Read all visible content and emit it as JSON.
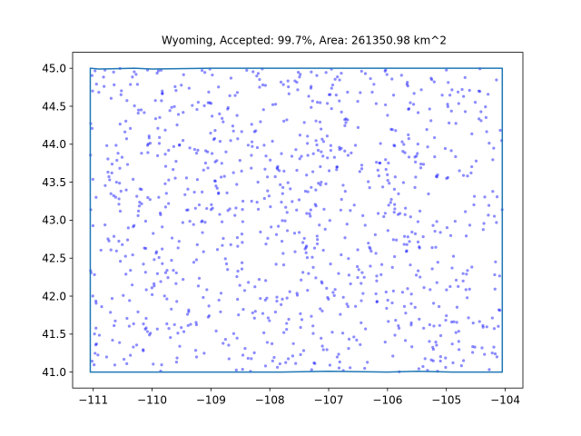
{
  "chart_data": {
    "type": "scatter",
    "title": "Wyoming, Accepted: 99.7%, Area: 261350.98 km^2",
    "xlabel": "",
    "ylabel": "",
    "xlim": [
      -111.35,
      -103.7
    ],
    "ylim": [
      40.79,
      45.21
    ],
    "grid": false,
    "legend": "none",
    "x_ticks": [
      -111,
      -110,
      -109,
      -108,
      -107,
      -106,
      -105,
      -104
    ],
    "x_tick_labels": [
      "−111",
      "−110",
      "−109",
      "−108",
      "−107",
      "−106",
      "−105",
      "−104"
    ],
    "y_ticks": [
      41.0,
      41.5,
      42.0,
      42.5,
      43.0,
      43.5,
      44.0,
      44.5,
      45.0
    ],
    "y_tick_labels": [
      "41.0",
      "41.5",
      "42.0",
      "42.5",
      "43.0",
      "43.5",
      "44.0",
      "44.5",
      "45.0"
    ],
    "boundary": {
      "name": "Wyoming",
      "color": "#1f77b4",
      "x": [
        -111.05,
        -111.05,
        -110.9,
        -110.3,
        -110.0,
        -109.0,
        -108.0,
        -107.0,
        -106.0,
        -105.0,
        -104.05,
        -104.05,
        -104.9,
        -105.5,
        -106.0,
        -107.0,
        -107.8,
        -108.5,
        -109.0,
        -110.0,
        -111.05
      ],
      "y": [
        41.0,
        45.0,
        44.99,
        45.0,
        44.99,
        45.0,
        45.0,
        45.0,
        45.0,
        45.0,
        45.0,
        41.0,
        41.0,
        41.01,
        41.0,
        41.01,
        41.0,
        41.0,
        41.0,
        41.0,
        41.0
      ]
    },
    "points": {
      "color": "#0000ff",
      "seed": 7,
      "count": 1000,
      "x_range": [
        -111.05,
        -104.05
      ],
      "y_range": [
        41.0,
        45.0
      ]
    }
  }
}
